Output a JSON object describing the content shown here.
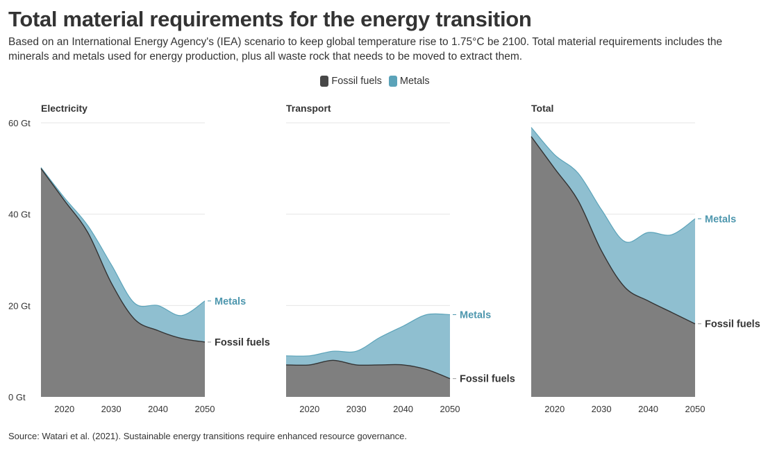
{
  "title": "Total material requirements for the energy transition",
  "subtitle": "Based on an International Energy Agency's (IEA) scenario to keep global temperature rise to 1.75°C be 2100. Total material requirements includes the minerals and metals used for energy production, plus all waste rock that needs to be moved to extract them.",
  "legend": [
    {
      "label": "Fossil fuels",
      "color": "#474747"
    },
    {
      "label": "Metals",
      "color": "#5ba3b9"
    }
  ],
  "source": "Source: Watari et al. (2021). Sustainable energy transitions require enhanced resource governance.",
  "colors": {
    "fossil_fill": "#7f7f7f",
    "fossil_line": "#333333",
    "metals_fill": "#8fbfd0",
    "metals_line": "#5ba3b9",
    "metals_label": "#4e97ae",
    "grid": "#e6e6e6"
  },
  "chart_data": [
    {
      "type": "area",
      "stacked": true,
      "title": "Electricity",
      "x": [
        2015,
        2020,
        2025,
        2030,
        2035,
        2040,
        2045,
        2050
      ],
      "series": [
        {
          "name": "Fossil fuels",
          "values": [
            50,
            43,
            36,
            25,
            17,
            14.5,
            12.8,
            12
          ]
        },
        {
          "name": "Metals",
          "values": [
            0.2,
            0.6,
            1.5,
            4,
            3.5,
            5.5,
            5,
            9
          ]
        }
      ],
      "end_labels": [
        "Fossil fuels",
        "Metals"
      ],
      "ylim": [
        0,
        60
      ],
      "yticks": [
        "0 Gt",
        "20 Gt",
        "40 Gt",
        "60 Gt"
      ],
      "xticks": [
        2020,
        2030,
        2040,
        2050
      ]
    },
    {
      "type": "area",
      "stacked": true,
      "title": "Transport",
      "x": [
        2015,
        2020,
        2025,
        2030,
        2035,
        2040,
        2045,
        2050
      ],
      "series": [
        {
          "name": "Fossil fuels",
          "values": [
            7,
            7,
            8,
            7,
            7,
            7,
            6,
            4
          ]
        },
        {
          "name": "Metals",
          "values": [
            2,
            2,
            2,
            3,
            6,
            8.5,
            12,
            14
          ]
        }
      ],
      "end_labels": [
        "Fossil fuels",
        "Metals"
      ],
      "ylim": [
        0,
        60
      ],
      "yticks": [],
      "xticks": [
        2020,
        2030,
        2040,
        2050
      ]
    },
    {
      "type": "area",
      "stacked": true,
      "title": "Total",
      "x": [
        2015,
        2020,
        2025,
        2030,
        2035,
        2040,
        2045,
        2050
      ],
      "series": [
        {
          "name": "Fossil fuels",
          "values": [
            57,
            50,
            43,
            32,
            24,
            21,
            18.5,
            16
          ]
        },
        {
          "name": "Metals",
          "values": [
            2,
            3,
            6,
            9,
            10,
            15,
            17,
            23
          ]
        }
      ],
      "end_labels": [
        "Fossil fuels",
        "Metals"
      ],
      "ylim": [
        0,
        60
      ],
      "yticks": [],
      "xticks": [
        2020,
        2030,
        2040,
        2050
      ]
    }
  ]
}
